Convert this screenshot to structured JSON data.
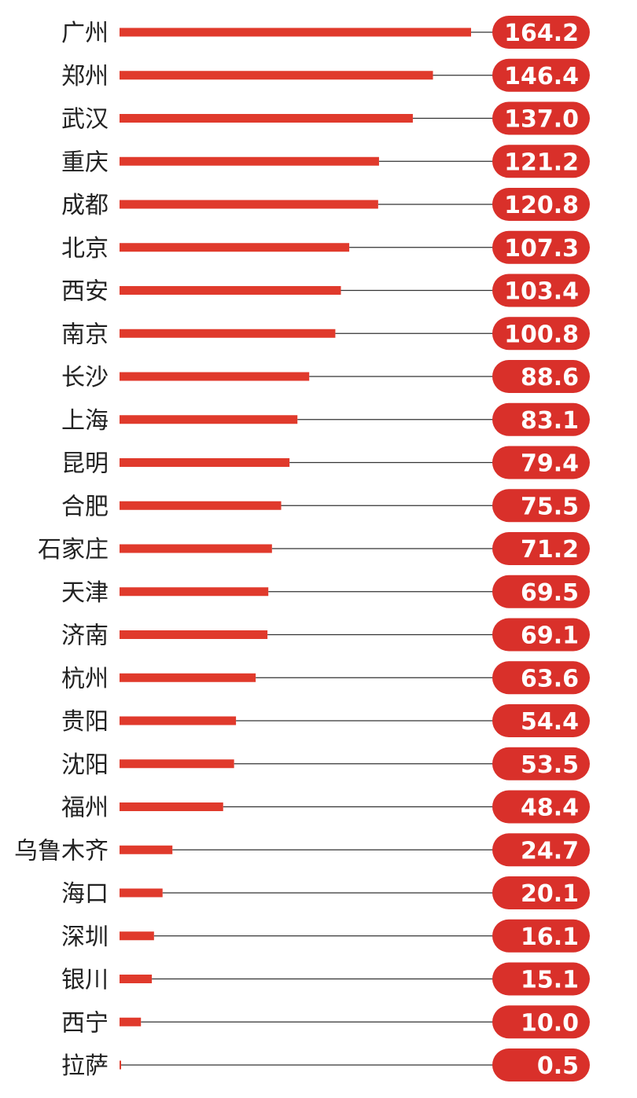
{
  "chart_data": {
    "type": "bar",
    "orientation": "horizontal",
    "title": "",
    "xlabel": "",
    "ylabel": "",
    "xlim": [
      0,
      164.2
    ],
    "grid": false,
    "legend": "none",
    "categories": [
      "广州",
      "郑州",
      "武汉",
      "重庆",
      "成都",
      "北京",
      "西安",
      "南京",
      "长沙",
      "上海",
      "昆明",
      "合肥",
      "石家庄",
      "天津",
      "济南",
      "杭州",
      "贵阳",
      "沈阳",
      "福州",
      "乌鲁木齐",
      "海口",
      "深圳",
      "银川",
      "西宁",
      "拉萨"
    ],
    "values": [
      164.2,
      146.4,
      137.0,
      121.2,
      120.8,
      107.3,
      103.4,
      100.8,
      88.6,
      83.1,
      79.4,
      75.5,
      71.2,
      69.5,
      69.1,
      63.6,
      54.4,
      53.5,
      48.4,
      24.7,
      20.1,
      16.1,
      15.1,
      10.0,
      0.5
    ],
    "value_labels": [
      "164.2",
      "146.4",
      "137.0",
      "121.2",
      "120.8",
      "107.3",
      "103.4",
      "100.8",
      "88.6",
      "83.1",
      "79.4",
      "75.5",
      "71.2",
      "69.5",
      "69.1",
      "63.6",
      "54.4",
      "53.5",
      "48.4",
      "24.7",
      "20.1",
      "16.1",
      "15.1",
      "10.0",
      "0.5"
    ]
  },
  "colors": {
    "bar": "#e03a2c",
    "badge": "#d9302a",
    "leader_line": "#333333",
    "city_text": "#222222",
    "badge_text": "#ffffff"
  }
}
